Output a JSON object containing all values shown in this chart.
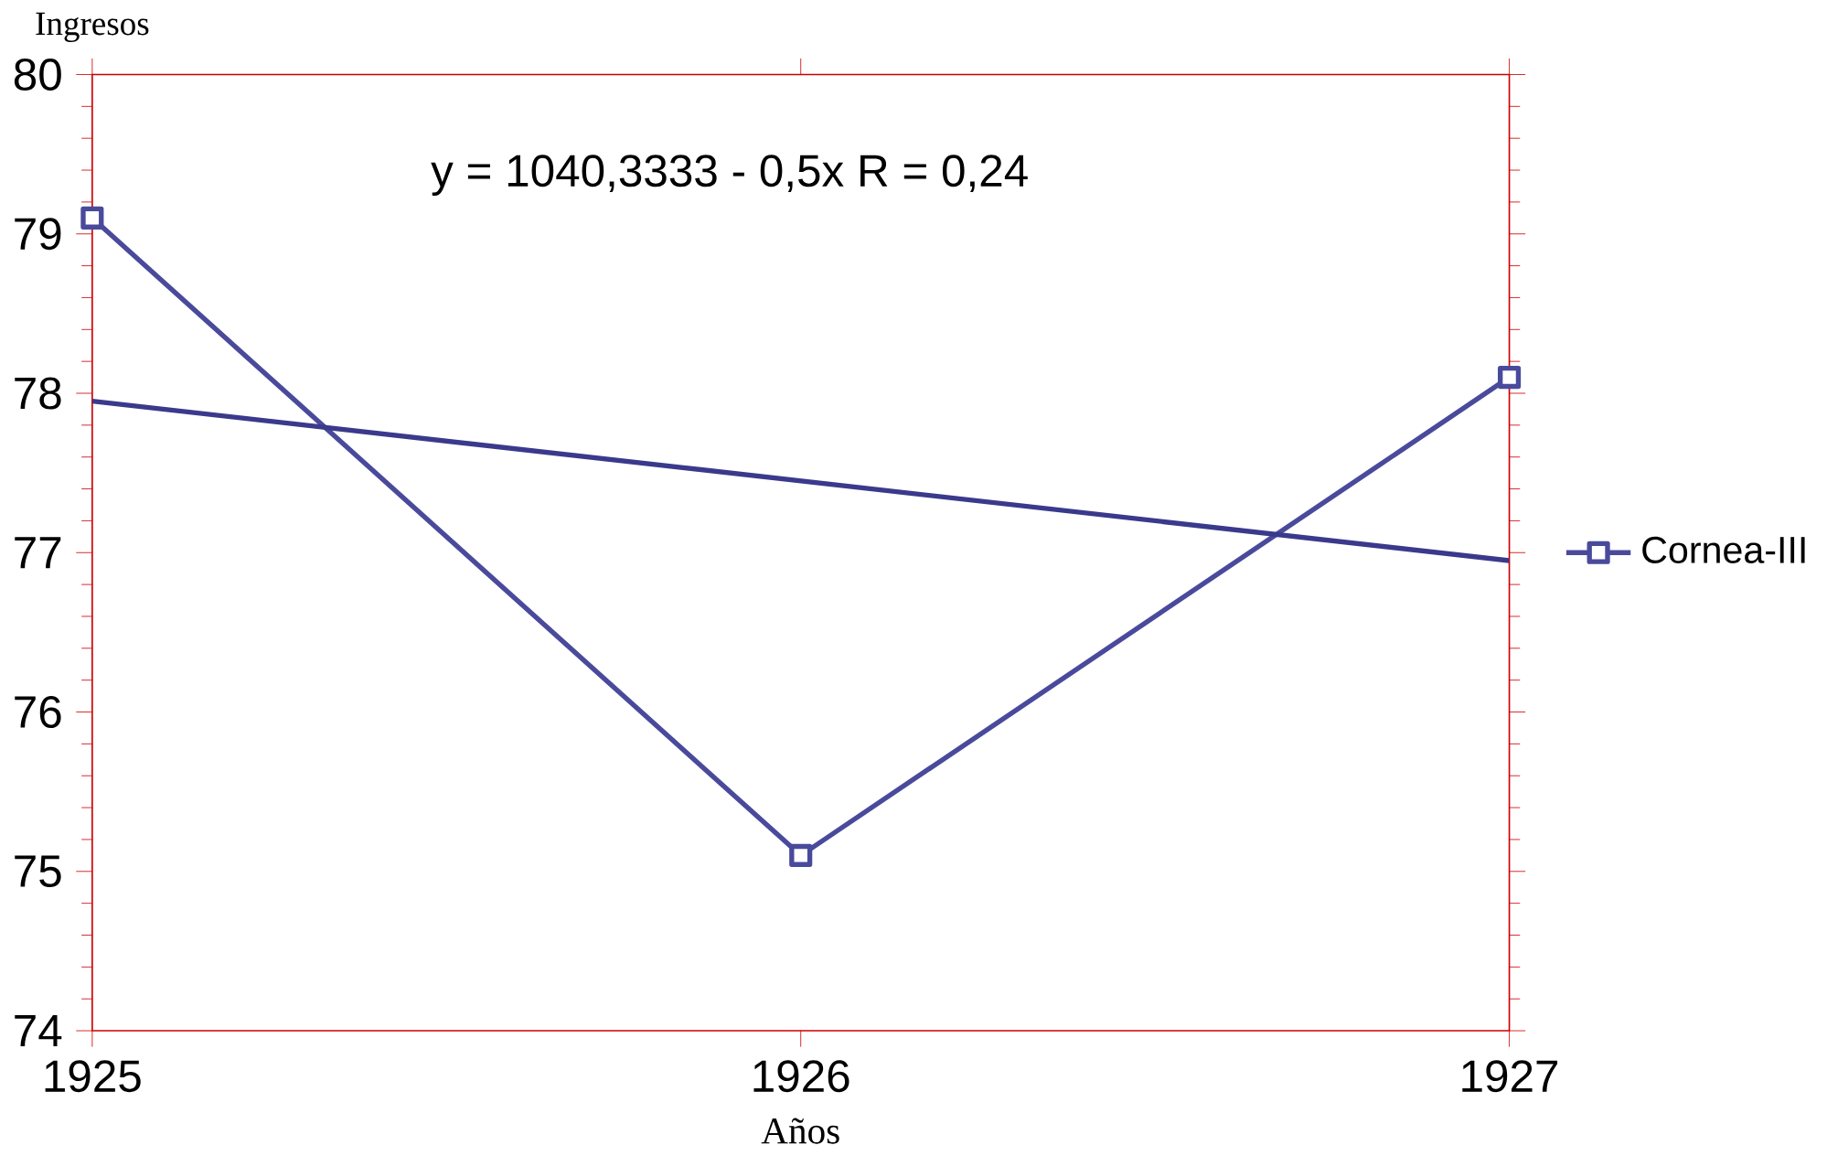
{
  "chart_data": {
    "type": "line",
    "xlabel": "Años",
    "ylabel": "Ingresos",
    "x": [
      1925,
      1926,
      1927
    ],
    "series": [
      {
        "name": "Cornea-III",
        "color": "#4a4a9c",
        "values": [
          79.1,
          75.1,
          78.1
        ],
        "marker": "square"
      },
      {
        "color": "#3a3a8c",
        "values": [
          77.95,
          76.95
        ],
        "x": [
          1925,
          1927
        ],
        "marker": "none"
      }
    ],
    "annotations": [
      "y = 1040,3333 - 0,5x    R = 0,24"
    ],
    "xlim": [
      1925,
      1927
    ],
    "ylim": [
      74,
      80
    ],
    "xticks": [
      1925,
      1926,
      1927
    ],
    "yticks": [
      74,
      75,
      76,
      77,
      78,
      79,
      80
    ],
    "legend": "right",
    "grid": false,
    "line_style": "solid"
  }
}
